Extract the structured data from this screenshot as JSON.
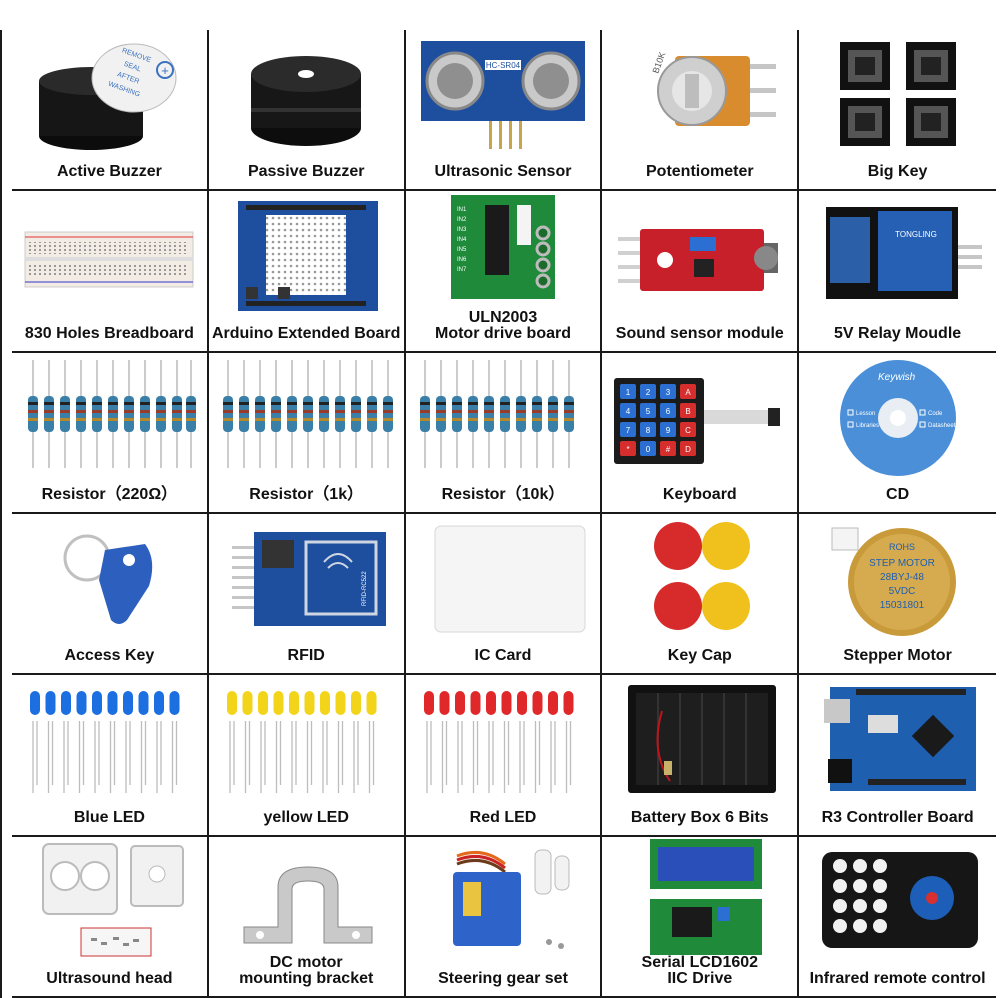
{
  "items": [
    {
      "label": "Active Buzzer",
      "icon": "active-buzzer-icon",
      "sticker_lines": [
        "REMOVE",
        "SEAL",
        "AFTER",
        "WASHING"
      ]
    },
    {
      "label": "Passive Buzzer",
      "icon": "passive-buzzer-icon"
    },
    {
      "label": "Ultrasonic Sensor",
      "icon": "ultrasonic-sensor-icon",
      "chip_text": "HC-SR04"
    },
    {
      "label": "Potentiometer",
      "icon": "potentiometer-icon",
      "chip_text": "B10K"
    },
    {
      "label": "Big Key",
      "icon": "big-key-icon"
    },
    {
      "label": "830 Holes Breadboard",
      "icon": "breadboard-icon"
    },
    {
      "label": "Arduino Extended Board",
      "icon": "extended-board-icon"
    },
    {
      "label_lines": [
        "ULN2003",
        "Motor drive board"
      ],
      "icon": "motor-driver-icon",
      "pins": [
        "IN1",
        "IN2",
        "IN3",
        "IN4",
        "IN5",
        "IN6",
        "IN7"
      ]
    },
    {
      "label": "Sound sensor module",
      "icon": "sound-sensor-icon"
    },
    {
      "label": "5V Relay Moudle",
      "icon": "relay-module-icon",
      "chip_text": "TONGLING"
    },
    {
      "label": "Resistor（220Ω）",
      "icon": "resistor-220-icon"
    },
    {
      "label": "Resistor（1k）",
      "icon": "resistor-1k-icon"
    },
    {
      "label": "Resistor（10k）",
      "icon": "resistor-10k-icon"
    },
    {
      "label": "Keyboard",
      "icon": "keypad-icon",
      "keys": [
        "1",
        "2",
        "3",
        "A",
        "4",
        "5",
        "6",
        "B",
        "7",
        "8",
        "9",
        "C",
        "*",
        "0",
        "#",
        "D"
      ]
    },
    {
      "label": "CD",
      "icon": "cd-icon",
      "brand": "Keywish",
      "menu": [
        "Lesson",
        "Code",
        "Libraries",
        "Datasheet"
      ]
    },
    {
      "label": "Access Key",
      "icon": "access-key-icon"
    },
    {
      "label": "RFID",
      "icon": "rfid-icon",
      "chip_text": "RFID-RC522"
    },
    {
      "label": "IC Card",
      "icon": "ic-card-icon"
    },
    {
      "label": "Key Cap",
      "icon": "key-cap-icon"
    },
    {
      "label": "Stepper Motor",
      "icon": "stepper-motor-icon",
      "motor_lines": [
        "ROHS",
        "STEP MOTOR",
        "28BYJ-48",
        "5VDC",
        "15031801"
      ]
    },
    {
      "label": "Blue LED",
      "icon": "blue-led-icon"
    },
    {
      "label": "yellow LED",
      "icon": "yellow-led-icon"
    },
    {
      "label": "Red LED",
      "icon": "red-led-icon"
    },
    {
      "label": "Battery Box 6 Bits",
      "icon": "battery-box-icon"
    },
    {
      "label": "R3 Controller Board",
      "icon": "controller-board-icon"
    },
    {
      "label": "Ultrasound head",
      "icon": "ultrasound-head-icon"
    },
    {
      "label_lines": [
        "DC motor",
        "mounting bracket"
      ],
      "icon": "motor-bracket-icon"
    },
    {
      "label": "Steering gear set",
      "icon": "servo-icon"
    },
    {
      "label_lines": [
        "Serial LCD1602",
        "IIC Drive"
      ],
      "icon": "lcd-icon"
    },
    {
      "label": "Infrared remote control",
      "icon": "ir-remote-icon"
    }
  ],
  "colors": {
    "grid_line": "#1a1a1a",
    "pcb_blue": "#1d4f9e",
    "pcb_red": "#c8202a",
    "pcb_green": "#1e8a3a",
    "led_blue": "#1b6fe0",
    "led_yellow": "#f2d51a",
    "led_red": "#e0282a"
  }
}
